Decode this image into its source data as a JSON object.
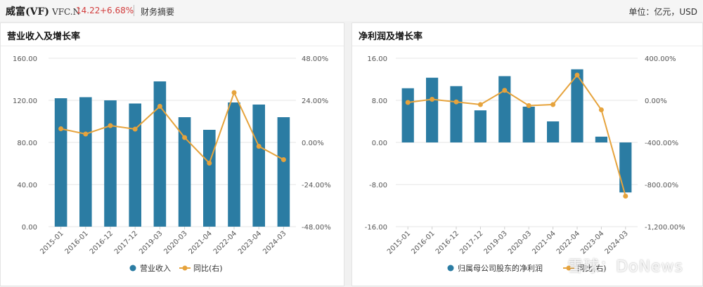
{
  "header": {
    "company": "威富(VF)",
    "ticker": "VFC.N",
    "price": "14.22",
    "change": "+6.68%",
    "section": "财务摘要",
    "unit": "单位：亿元，USD"
  },
  "colors": {
    "bar": "#2b7ca3",
    "line": "#e6a33c",
    "grid": "#e6e6e6",
    "axis_text": "#555555",
    "price": "#d23c3c"
  },
  "watermark": "雪球：DoNews",
  "chart_data": [
    {
      "type": "bar",
      "title": "营业收入及增长率",
      "categories": [
        "2015-01",
        "2016-01",
        "2016-12",
        "2017-12",
        "2019-03",
        "2020-03",
        "2021-04",
        "2022-04",
        "2023-04",
        "2024-03"
      ],
      "y_ticks": [
        "160.00",
        "120.00",
        "80.00",
        "40.00",
        "0.00"
      ],
      "y2_ticks": [
        "48.00%",
        "24.00%",
        "0.00%",
        "-24.00%",
        "-48.00%"
      ],
      "ylim": [
        0,
        160
      ],
      "y2lim": [
        -48,
        48
      ],
      "series": [
        {
          "name": "营业收入",
          "type": "bar",
          "axis": "left",
          "values": [
            122,
            123,
            120,
            117,
            138,
            104,
            92,
            118,
            116,
            104
          ]
        },
        {
          "name": "同比(右)",
          "type": "line",
          "axis": "right",
          "values": [
            7.8,
            4.8,
            9.6,
            7.6,
            20.6,
            2.8,
            -11.8,
            28.4,
            -2.2,
            -9.8
          ]
        }
      ]
    },
    {
      "type": "bar",
      "title": "净利润及增长率",
      "categories": [
        "2015-01",
        "2016-01",
        "2016-12",
        "2017-12",
        "2019-03",
        "2020-03",
        "2021-04",
        "2022-04",
        "2023-04",
        "2024-03"
      ],
      "y_ticks": [
        "16.00",
        "8.00",
        "0.00",
        "-8.00",
        "-16.00"
      ],
      "y2_ticks": [
        "400.00%",
        "0.00%",
        "-400.00%",
        "-800.00%",
        "-1,200.00%"
      ],
      "ylim": [
        -16,
        16
      ],
      "y2lim": [
        -1200,
        400
      ],
      "series": [
        {
          "name": "归属母公司股东的净利润",
          "type": "bar",
          "axis": "left",
          "values": [
            10.3,
            12.3,
            10.7,
            6.1,
            12.6,
            6.8,
            4.0,
            13.9,
            1.1,
            -9.5
          ]
        },
        {
          "name": "同比(右)",
          "type": "line",
          "axis": "right",
          "values": [
            -20,
            10,
            -15,
            -40,
            95,
            -50,
            -40,
            240,
            -90,
            -910
          ]
        }
      ]
    }
  ]
}
